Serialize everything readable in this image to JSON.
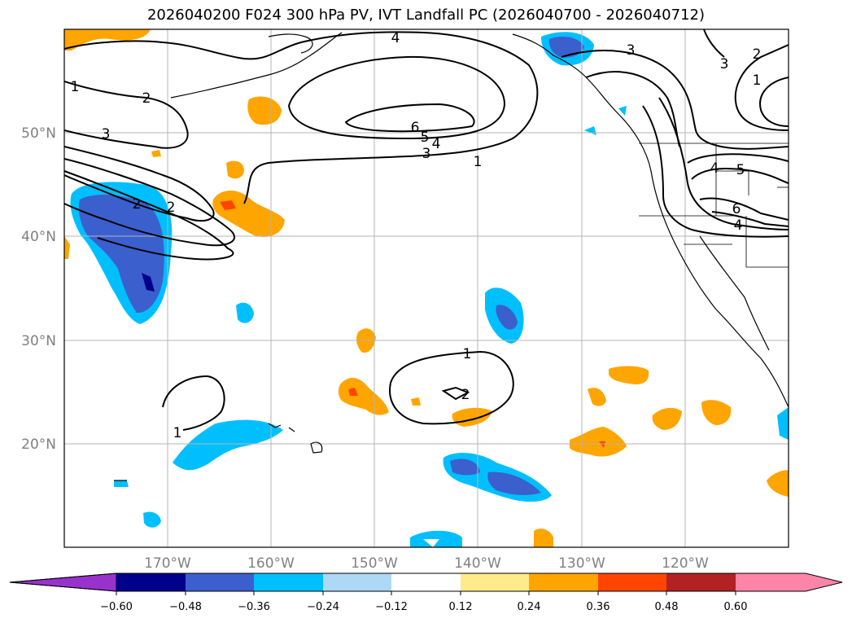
{
  "title": "2026040200 F024 300 hPa PV, IVT Landfall PC (2026040700 - 2026040712)",
  "map": {
    "lat_ticks": [
      "50°N",
      "40°N",
      "30°N",
      "20°N"
    ],
    "lon_ticks": [
      "170°W",
      "160°W",
      "150°W",
      "140°W",
      "130°W",
      "120°W"
    ],
    "contour_labels": [
      "4",
      "3",
      "3",
      "2",
      "1",
      "2",
      "1",
      "3",
      "2",
      "6",
      "5",
      "4",
      "3",
      "1",
      "2",
      "4",
      "5",
      "6",
      "4",
      "1",
      "2",
      "1"
    ]
  },
  "colorbar": {
    "ticks": [
      "−0.60",
      "−0.48",
      "−0.36",
      "−0.24",
      "−0.12",
      "0.12",
      "0.24",
      "0.36",
      "0.48",
      "0.60"
    ],
    "colors": [
      "#9932cc",
      "#00008b",
      "#3b5fcd",
      "#00bfff",
      "#add8f6",
      "#ffffff",
      "#ffeb8c",
      "#ffa500",
      "#ff4500",
      "#b22222",
      "#ff85a8",
      "#ff85a8"
    ]
  },
  "colors": {
    "grid": "#b4b4b4",
    "coast": "#000000"
  }
}
